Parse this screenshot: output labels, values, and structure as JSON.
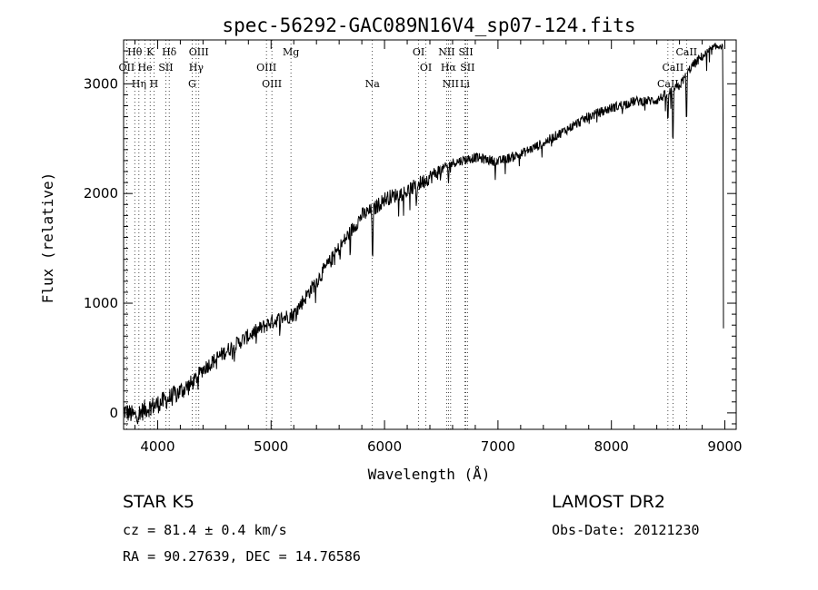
{
  "chart_data": {
    "type": "line",
    "title": "spec-56292-GAC089N16V4_sp07-124.fits",
    "xlabel": "Wavelength (Å)",
    "ylabel": "Flux (relative)",
    "xlim": [
      3700,
      9100
    ],
    "ylim": [
      -150,
      3400
    ],
    "xticks": [
      4000,
      5000,
      6000,
      7000,
      8000,
      9000
    ],
    "yticks": [
      0,
      1000,
      2000,
      3000
    ],
    "grid": false,
    "spectrum_anchors": [
      [
        3700,
        20
      ],
      [
        3800,
        -30
      ],
      [
        3900,
        40
      ],
      [
        4000,
        80
      ],
      [
        4100,
        130
      ],
      [
        4200,
        200
      ],
      [
        4300,
        260
      ],
      [
        4400,
        400
      ],
      [
        4600,
        560
      ],
      [
        4800,
        700
      ],
      [
        5000,
        830
      ],
      [
        5200,
        900
      ],
      [
        5400,
        1200
      ],
      [
        5600,
        1500
      ],
      [
        5800,
        1800
      ],
      [
        5900,
        1850
      ],
      [
        6000,
        1950
      ],
      [
        6200,
        2020
      ],
      [
        6400,
        2150
      ],
      [
        6600,
        2280
      ],
      [
        6800,
        2330
      ],
      [
        7000,
        2290
      ],
      [
        7200,
        2360
      ],
      [
        7400,
        2460
      ],
      [
        7600,
        2580
      ],
      [
        7800,
        2700
      ],
      [
        8000,
        2780
      ],
      [
        8200,
        2840
      ],
      [
        8400,
        2850
      ],
      [
        8600,
        2980
      ],
      [
        8700,
        3150
      ],
      [
        8800,
        3250
      ],
      [
        8900,
        3320
      ],
      [
        8990,
        3370
      ]
    ],
    "absorption_features": [
      [
        5895,
        500
      ],
      [
        6280,
        180
      ],
      [
        6563,
        150
      ],
      [
        8498,
        300
      ],
      [
        8542,
        550
      ],
      [
        8662,
        450
      ],
      [
        8990,
        3000
      ]
    ],
    "spectral_lines": [
      {
        "label": "Hθ",
        "x": 3798,
        "row": 0
      },
      {
        "label": "K",
        "x": 3934,
        "row": 0
      },
      {
        "label": "Hδ",
        "x": 4102,
        "row": 0
      },
      {
        "label": "OIII",
        "x": 4363,
        "row": 0
      },
      {
        "label": "Mg",
        "x": 5175,
        "row": 0
      },
      {
        "label": "OI",
        "x": 6300,
        "row": 0
      },
      {
        "label": "NII",
        "x": 6548,
        "row": 0
      },
      {
        "label": "SII",
        "x": 6717,
        "row": 0
      },
      {
        "label": "CaII",
        "x": 8662,
        "row": 0
      },
      {
        "label": "OII",
        "x": 3727,
        "row": 1
      },
      {
        "label": "He",
        "x": 3889,
        "row": 1
      },
      {
        "label": "SII",
        "x": 4072,
        "row": 1
      },
      {
        "label": "Hγ",
        "x": 4340,
        "row": 1
      },
      {
        "label": "OIII",
        "x": 4959,
        "row": 1
      },
      {
        "label": "OI",
        "x": 6364,
        "row": 1
      },
      {
        "label": "Hα",
        "x": 6563,
        "row": 1
      },
      {
        "label": "SII",
        "x": 6731,
        "row": 1
      },
      {
        "label": "CaII",
        "x": 8542,
        "row": 1
      },
      {
        "label": "Hη",
        "x": 3835,
        "row": 2
      },
      {
        "label": "H",
        "x": 3968,
        "row": 2
      },
      {
        "label": "G",
        "x": 4304,
        "row": 2
      },
      {
        "label": "OIII",
        "x": 5007,
        "row": 2
      },
      {
        "label": "Na",
        "x": 5893,
        "row": 2
      },
      {
        "label": "NII",
        "x": 6583,
        "row": 2
      },
      {
        "label": "Li",
        "x": 6708,
        "row": 2
      },
      {
        "label": "CaII",
        "x": 8498,
        "row": 2
      }
    ]
  },
  "info": {
    "class_line": "STAR    K5",
    "survey": "LAMOST DR2",
    "cz": "cz = 81.4 ± 0.4 km/s",
    "obs_date": "Obs-Date: 20121230",
    "coords": "RA =  90.27639, DEC =  14.76586"
  }
}
